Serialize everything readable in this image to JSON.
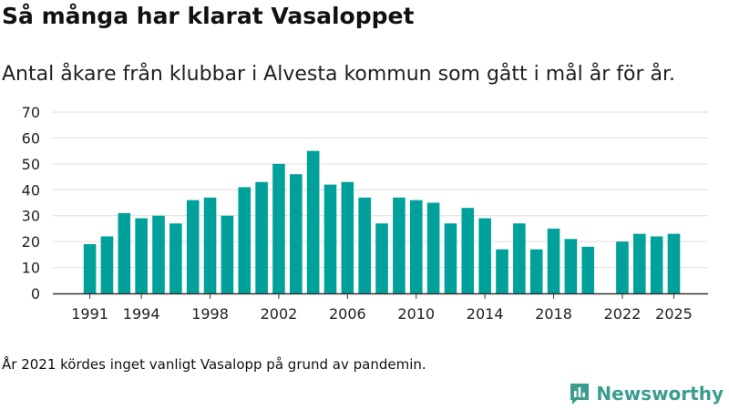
{
  "title": "Så många har klarat Vasaloppet",
  "subtitle": "Antal åkare från klubbar i Alvesta kommun som gått i mål år för år.",
  "footnote": "År 2021 kördes inget vanligt Vasalopp på grund av pandemin.",
  "brand": {
    "name": "Newsworthy",
    "icon": "newsworthy-logo-icon"
  },
  "colors": {
    "bar": "#00a19a",
    "grid": "#dddddd",
    "axis": "#333333",
    "brand": "#3a9d8f"
  },
  "chart_data": {
    "type": "bar",
    "title": "",
    "xlabel": "",
    "ylabel": "",
    "ylim": [
      0,
      70
    ],
    "yticks": [
      0,
      10,
      20,
      30,
      40,
      50,
      60,
      70
    ],
    "xticks": [
      "1991",
      "1994",
      "1998",
      "2002",
      "2006",
      "2010",
      "2014",
      "2018",
      "2022",
      "2025"
    ],
    "grid": true,
    "categories": [
      "1991",
      "1992",
      "1993",
      "1994",
      "1995",
      "1996",
      "1997",
      "1998",
      "1999",
      "2000",
      "2001",
      "2002",
      "2003",
      "2004",
      "2005",
      "2006",
      "2007",
      "2008",
      "2009",
      "2010",
      "2011",
      "2012",
      "2013",
      "2014",
      "2015",
      "2016",
      "2017",
      "2018",
      "2019",
      "2020",
      "2021",
      "2022",
      "2023",
      "2024",
      "2025"
    ],
    "values": [
      19,
      22,
      31,
      29,
      30,
      27,
      36,
      37,
      30,
      41,
      43,
      50,
      46,
      55,
      42,
      43,
      37,
      27,
      37,
      36,
      35,
      27,
      33,
      29,
      17,
      27,
      17,
      25,
      21,
      18,
      null,
      20,
      23,
      22,
      23
    ]
  }
}
